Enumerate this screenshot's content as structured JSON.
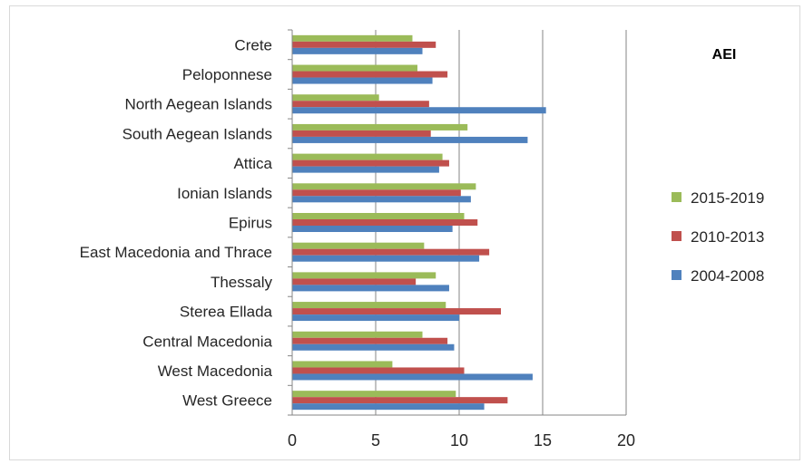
{
  "chart_data": {
    "type": "bar",
    "orientation": "horizontal",
    "title": "AEI",
    "categories": [
      "Crete",
      "Peloponnese",
      "North Aegean Islands",
      "South Aegean Islands",
      "Attica",
      "Ionian Islands",
      "Epirus",
      "East Macedonia and Thrace",
      "Thessaly",
      "Sterea Ellada",
      "Central Macedonia",
      "West Macedonia",
      "West Greece"
    ],
    "series": [
      {
        "name": "2015-2019",
        "color": "#9bbb59",
        "values": [
          7.2,
          7.5,
          5.2,
          10.5,
          9.0,
          11.0,
          10.3,
          7.9,
          8.6,
          9.2,
          7.8,
          6.0,
          9.8
        ]
      },
      {
        "name": "2010-2013",
        "color": "#c0504d",
        "values": [
          8.6,
          9.3,
          8.2,
          8.3,
          9.4,
          10.1,
          11.1,
          11.8,
          7.4,
          12.5,
          9.3,
          10.3,
          12.9
        ]
      },
      {
        "name": "2004-2008",
        "color": "#4f81bd",
        "values": [
          7.8,
          8.4,
          15.2,
          14.1,
          8.8,
          10.7,
          9.6,
          11.2,
          9.4,
          10.0,
          9.7,
          14.4,
          11.5
        ]
      }
    ],
    "xlim": [
      0,
      20
    ],
    "xticks": [
      0,
      5,
      10,
      15,
      20
    ],
    "grid": true,
    "legend_position": "right"
  }
}
